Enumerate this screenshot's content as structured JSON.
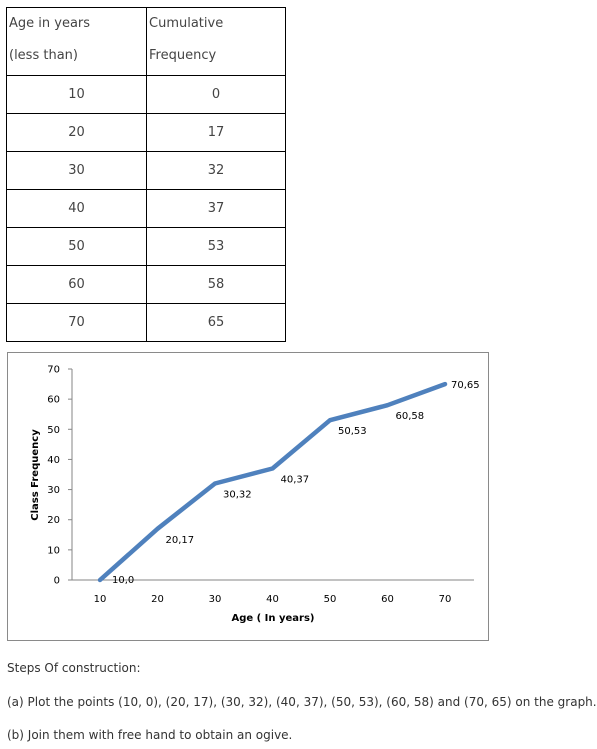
{
  "table": {
    "headers": [
      [
        "Age in years",
        "(less than)"
      ],
      [
        "Cumulative",
        "Frequency"
      ]
    ],
    "rows": [
      [
        "10",
        "0"
      ],
      [
        "20",
        "17"
      ],
      [
        "30",
        "32"
      ],
      [
        "40",
        "37"
      ],
      [
        "50",
        "53"
      ],
      [
        "60",
        "58"
      ],
      [
        "70",
        "65"
      ]
    ]
  },
  "chart_data": {
    "type": "line",
    "title": "",
    "xlabel": "Age ( In years)",
    "ylabel": "Class Frequency",
    "xlim": [
      10,
      70
    ],
    "ylim": [
      0,
      70
    ],
    "x_ticks": [
      10,
      20,
      30,
      40,
      50,
      60,
      70
    ],
    "y_ticks": [
      0,
      10,
      20,
      30,
      40,
      50,
      60,
      70
    ],
    "grid": false,
    "line_color": "#4f81bd",
    "series": [
      {
        "x": [
          10,
          20,
          30,
          40,
          50,
          60,
          70
        ],
        "y": [
          0,
          17,
          32,
          37,
          53,
          58,
          65
        ],
        "labels": [
          "10,0",
          "20,17",
          "30,32",
          "40,37",
          "50,53",
          "60,58",
          "70,65"
        ]
      }
    ]
  },
  "notes": {
    "heading": "Steps Of construction:",
    "step_a": "(a) Plot the points (10, 0), (20, 17), (30, 32), (40, 37), (50, 53), (60, 58) and (70, 65) on the graph.",
    "step_b": "(b) Join them with free hand to obtain an ogive."
  }
}
